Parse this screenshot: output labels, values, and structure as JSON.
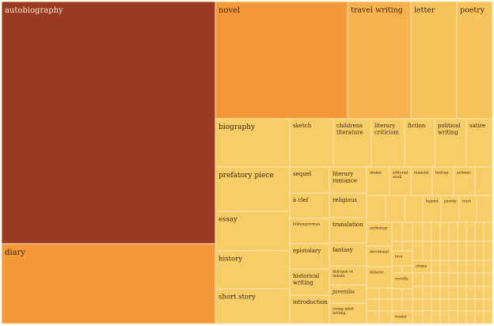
{
  "chart_data": {
    "type": "treemap",
    "title": "",
    "colors": {
      "dark": "#9a3a22",
      "orange": "#f4993a",
      "light_orange": "#f5b24f",
      "yellow": "#f7c35c",
      "pale": "#f7cd68",
      "border": "#fbe7b5"
    },
    "nodes": [
      {
        "label": "autobiography"
      },
      {
        "label": "diary"
      },
      {
        "label": "novel"
      },
      {
        "label": "travel writing"
      },
      {
        "label": "letter"
      },
      {
        "label": "poetry"
      },
      {
        "label": "biography"
      },
      {
        "label": "prefatory piece"
      },
      {
        "label": "essay"
      },
      {
        "label": "history"
      },
      {
        "label": "short story"
      },
      {
        "label": "sketch"
      },
      {
        "label": "childrens literature"
      },
      {
        "label": "literary criticism"
      },
      {
        "label": "fiction"
      },
      {
        "label": "political writing"
      },
      {
        "label": "satire"
      },
      {
        "label": "sequel"
      },
      {
        "label": "à clef"
      },
      {
        "label": "bildungsroman"
      },
      {
        "label": "epistolary"
      },
      {
        "label": "historical writing"
      },
      {
        "label": "introduction"
      },
      {
        "label": "literary romance"
      },
      {
        "label": "religious"
      },
      {
        "label": "translation"
      },
      {
        "label": "fantasy"
      },
      {
        "label": "dialogue or debate"
      },
      {
        "label": "juvenilia"
      },
      {
        "label": "young adult writing"
      },
      {
        "label": "drama"
      },
      {
        "label": "editorial work"
      },
      {
        "label": "feminist"
      },
      {
        "label": "lesbian"
      },
      {
        "label": "polemic"
      },
      {
        "label": "legend"
      },
      {
        "label": "parody"
      },
      {
        "label": "tract"
      },
      {
        "label": "anthology"
      },
      {
        "label": "devotional"
      },
      {
        "label": "didactic"
      },
      {
        "label": "love"
      },
      {
        "label": "utopia"
      },
      {
        "label": "novella"
      },
      {
        "label": "realist"
      }
    ]
  }
}
